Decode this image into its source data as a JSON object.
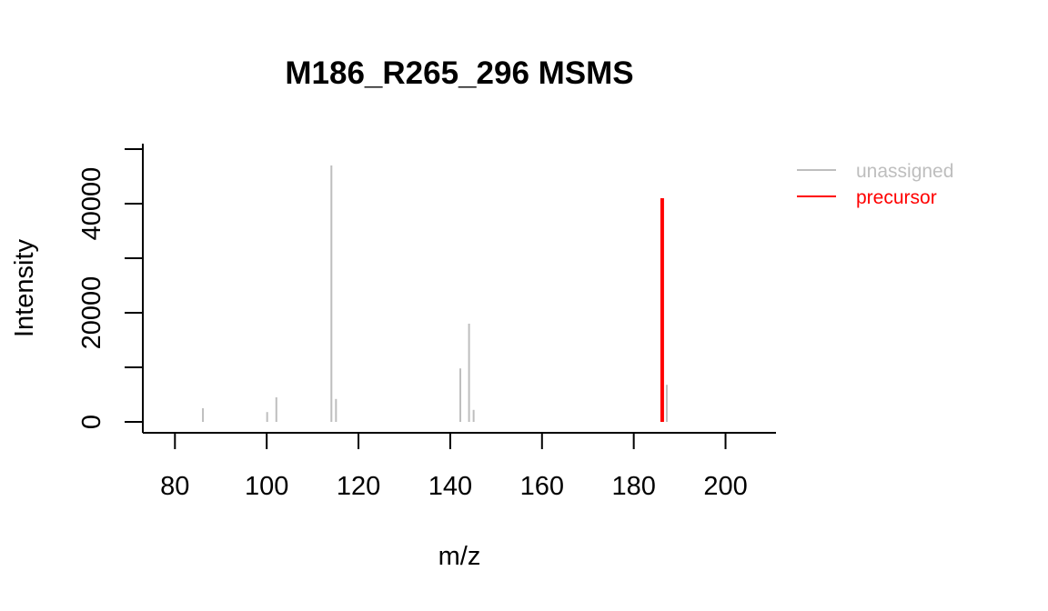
{
  "chart_data": {
    "type": "bar",
    "title": "M186_R265_296 MSMS",
    "xlabel": "m/z",
    "ylabel": "Intensity",
    "xlim": [
      73,
      211
    ],
    "ylim": [
      -2000,
      51000
    ],
    "x_ticks": [
      80,
      100,
      120,
      140,
      160,
      180,
      200
    ],
    "y_ticks": [
      0,
      10000,
      20000,
      30000,
      40000,
      50000
    ],
    "y_tick_labels": [
      "0",
      "",
      "20000",
      "",
      "40000",
      ""
    ],
    "grid": false,
    "legend_position": "top-right",
    "series": [
      {
        "name": "unassigned",
        "color": "#bebebe",
        "points": [
          {
            "x": 86.1,
            "y": 2500
          },
          {
            "x": 100.1,
            "y": 1800
          },
          {
            "x": 102.1,
            "y": 4500
          },
          {
            "x": 114.1,
            "y": 47000
          },
          {
            "x": 115.1,
            "y": 4200
          },
          {
            "x": 142.2,
            "y": 9800
          },
          {
            "x": 144.1,
            "y": 18000
          },
          {
            "x": 145.1,
            "y": 2200
          },
          {
            "x": 187.2,
            "y": 6800
          }
        ]
      },
      {
        "name": "precursor",
        "color": "#ff0000",
        "points": [
          {
            "x": 186.2,
            "y": 41000
          }
        ]
      }
    ]
  }
}
